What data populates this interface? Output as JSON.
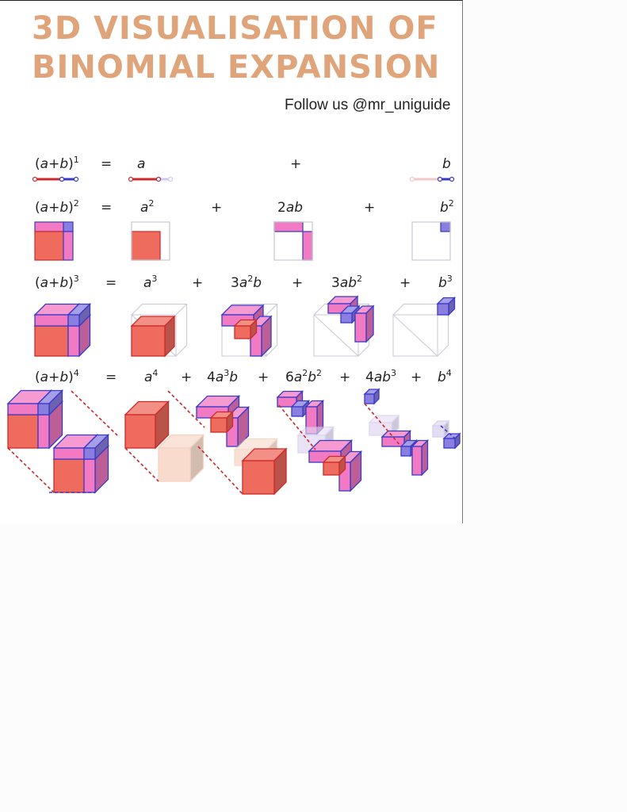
{
  "title": {
    "line1": "3D VISUALISATION OF",
    "line2": "BINOMIAL EXPANSION"
  },
  "follow": "Follow us @mr_uniguide",
  "colors": {
    "a_part": "#ef6b5d",
    "b_part": "#8a7ee0",
    "mixed": "#f27ac2",
    "edge_a": "#cc2a2a",
    "edge_b": "#3a3ac8",
    "title": "#e0a47a"
  },
  "rows": [
    {
      "lhs": {
        "base": "(a+b)",
        "exp": "1"
      },
      "eq": "=",
      "terms": [
        {
          "coef": "",
          "parts": [
            [
              "a",
              ""
            ]
          ]
        },
        {
          "coef": "",
          "parts": [
            [
              "b",
              ""
            ]
          ]
        }
      ]
    },
    {
      "lhs": {
        "base": "(a+b)",
        "exp": "2"
      },
      "eq": "=",
      "terms": [
        {
          "coef": "",
          "parts": [
            [
              "a",
              "2"
            ]
          ]
        },
        {
          "coef": "2",
          "parts": [
            [
              "a",
              ""
            ],
            [
              "b",
              ""
            ]
          ]
        },
        {
          "coef": "",
          "parts": [
            [
              "b",
              "2"
            ]
          ]
        }
      ]
    },
    {
      "lhs": {
        "base": "(a+b)",
        "exp": "3"
      },
      "eq": "=",
      "terms": [
        {
          "coef": "",
          "parts": [
            [
              "a",
              "3"
            ]
          ]
        },
        {
          "coef": "3",
          "parts": [
            [
              "a",
              "2"
            ],
            [
              "b",
              ""
            ]
          ]
        },
        {
          "coef": "3",
          "parts": [
            [
              "a",
              ""
            ],
            [
              "b",
              "2"
            ]
          ]
        },
        {
          "coef": "",
          "parts": [
            [
              "b",
              "3"
            ]
          ]
        }
      ]
    },
    {
      "lhs": {
        "base": "(a+b)",
        "exp": "4"
      },
      "eq": "=",
      "terms": [
        {
          "coef": "",
          "parts": [
            [
              "a",
              "4"
            ]
          ]
        },
        {
          "coef": "4",
          "parts": [
            [
              "a",
              "3"
            ],
            [
              "b",
              ""
            ]
          ]
        },
        {
          "coef": "6",
          "parts": [
            [
              "a",
              "2"
            ],
            [
              "b",
              "2"
            ]
          ]
        },
        {
          "coef": "4",
          "parts": [
            [
              "a",
              ""
            ],
            [
              "b",
              "3"
            ]
          ]
        },
        {
          "coef": "",
          "parts": [
            [
              "b",
              "4"
            ]
          ]
        }
      ]
    }
  ],
  "plus": "+"
}
